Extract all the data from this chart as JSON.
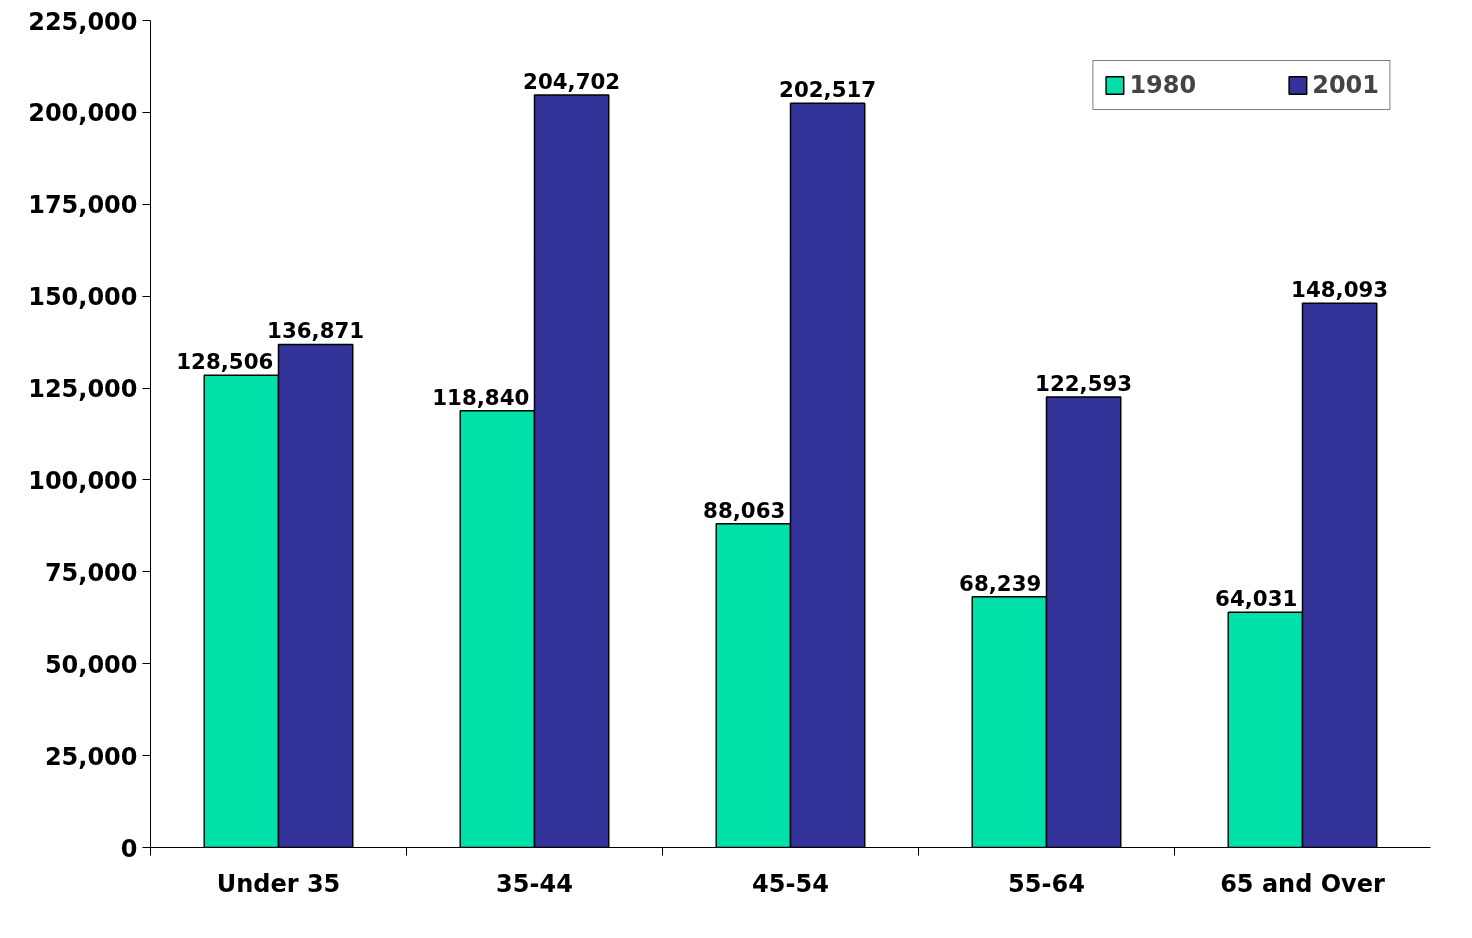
{
  "chart_data": {
    "type": "bar",
    "categories": [
      "Under 35",
      "35-44",
      "45-54",
      "55-64",
      "65 and Over"
    ],
    "series": [
      {
        "name": "1980",
        "color": "#00e0a8",
        "values": [
          128506,
          118840,
          88063,
          68239,
          64031
        ],
        "value_labels": [
          "128,506",
          "118,840",
          "88,063",
          "68,239",
          "64,031"
        ]
      },
      {
        "name": "2001",
        "color": "#333399",
        "values": [
          136871,
          204702,
          202517,
          122593,
          148093
        ],
        "value_labels": [
          "136,871",
          "204,702",
          "202,517",
          "122,593",
          "148,093"
        ]
      }
    ],
    "ylim": [
      0,
      225000
    ],
    "yticks": [
      {
        "value": 0,
        "label": "0"
      },
      {
        "value": 25000,
        "label": "25,000"
      },
      {
        "value": 50000,
        "label": "50,000"
      },
      {
        "value": 75000,
        "label": "75,000"
      },
      {
        "value": 100000,
        "label": "100,000"
      },
      {
        "value": 125000,
        "label": "125,000"
      },
      {
        "value": 150000,
        "label": "150,000"
      },
      {
        "value": 175000,
        "label": "175,000"
      },
      {
        "value": 200000,
        "label": "200,000"
      },
      {
        "value": 225000,
        "label": "225,000"
      }
    ],
    "grid": false,
    "legend": "top right"
  }
}
